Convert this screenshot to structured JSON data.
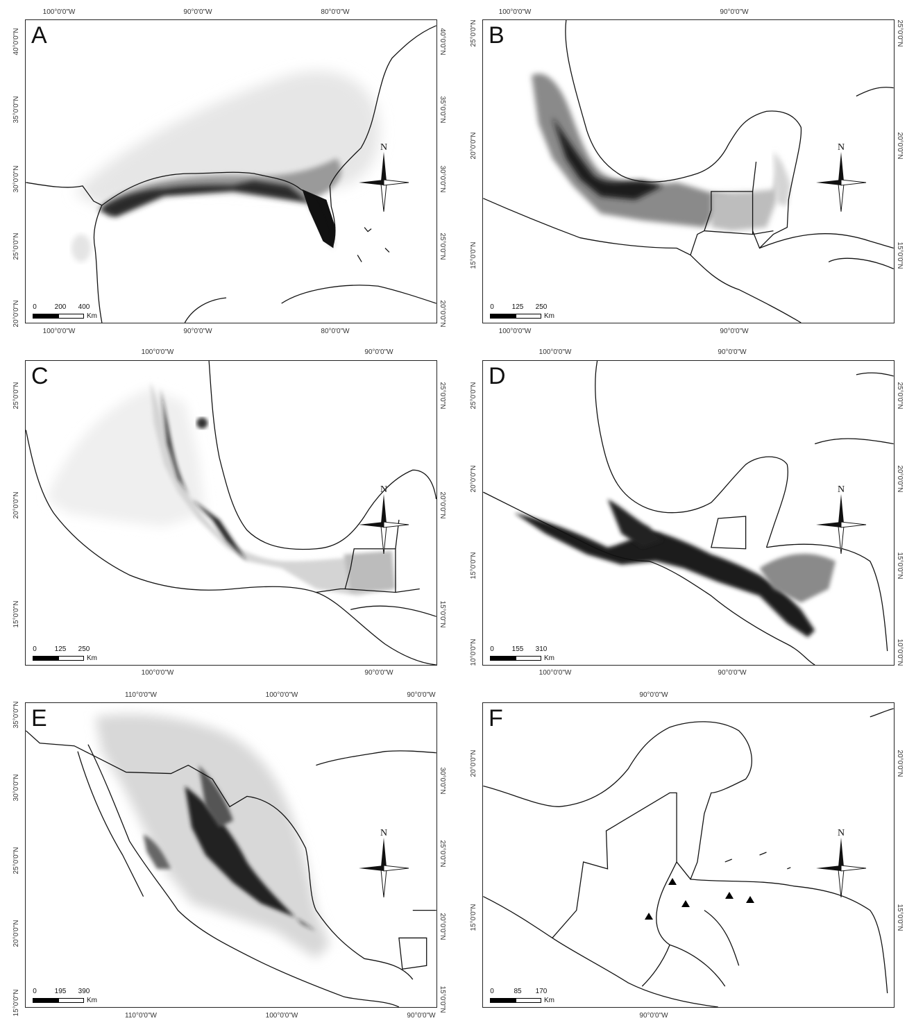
{
  "panels": [
    {
      "id": "A",
      "letter": "A",
      "top_ticks": [
        "100°0'0\"W",
        "90°0'0\"W",
        "80°0'0\"W"
      ],
      "bottom_ticks": [
        "100°0'0\"W",
        "90°0'0\"W",
        "80°0'0\"W"
      ],
      "left_ticks": [
        "40°0'0\"N",
        "35°0'0\"N",
        "30°0'0\"N",
        "25°0'0\"N",
        "20°0'0\"N"
      ],
      "right_ticks": [
        "40°0'0\"N",
        "35°0'0\"N",
        "30°0'0\"N",
        "25°0'0\"N",
        "20°0'0\"N"
      ],
      "scale": {
        "zero": "0",
        "mid": "200",
        "end": "400",
        "unit": "Km"
      },
      "north_label": "N"
    },
    {
      "id": "B",
      "letter": "B",
      "top_ticks": [
        "100°0'0\"W",
        "90°0'0\"W"
      ],
      "bottom_ticks": [
        "100°0'0\"W",
        "90°0'0\"W"
      ],
      "left_ticks": [
        "25°0'0\"N",
        "20°0'0\"N",
        "15°0'0\"N"
      ],
      "right_ticks": [
        "25°0'0\"N",
        "20°0'0\"N",
        "15°0'0\"N"
      ],
      "scale": {
        "zero": "0",
        "mid": "125",
        "end": "250",
        "unit": "Km"
      },
      "north_label": "N"
    },
    {
      "id": "C",
      "letter": "C",
      "top_ticks": [
        "100°0'0\"W",
        "90°0'0\"W"
      ],
      "bottom_ticks": [
        "100°0'0\"W",
        "90°0'0\"W"
      ],
      "left_ticks": [
        "25°0'0\"N",
        "20°0'0\"N",
        "15°0'0\"N"
      ],
      "right_ticks": [
        "25°0'0\"N",
        "20°0'0\"N",
        "15°0'0\"N"
      ],
      "scale": {
        "zero": "0",
        "mid": "125",
        "end": "250",
        "unit": "Km"
      },
      "north_label": "N"
    },
    {
      "id": "D",
      "letter": "D",
      "top_ticks": [
        "100°0'0\"W",
        "90°0'0\"W"
      ],
      "bottom_ticks": [
        "100°0'0\"W",
        "90°0'0\"W"
      ],
      "left_ticks": [
        "25°0'0\"N",
        "20°0'0\"N",
        "15°0'0\"N",
        "10°0'0\"N"
      ],
      "right_ticks": [
        "25°0'0\"N",
        "20°0'0\"N",
        "15°0'0\"N",
        "10°0'0\"N"
      ],
      "scale": {
        "zero": "0",
        "mid": "155",
        "end": "310",
        "unit": "Km"
      },
      "north_label": "N"
    },
    {
      "id": "E",
      "letter": "E",
      "top_ticks": [
        "110°0'0\"W",
        "100°0'0\"W",
        "90°0'0\"W"
      ],
      "bottom_ticks": [
        "110°0'0\"W",
        "100°0'0\"W",
        "90°0'0\"W"
      ],
      "left_ticks": [
        "35°0'0\"N",
        "30°0'0\"N",
        "25°0'0\"N",
        "20°0'0\"N",
        "15°0'0\"N"
      ],
      "right_ticks": [
        "30°0'0\"N",
        "25°0'0\"N",
        "20°0'0\"N",
        "15°0'0\"N"
      ],
      "scale": {
        "zero": "0",
        "mid": "195",
        "end": "390",
        "unit": "Km"
      },
      "north_label": "N"
    },
    {
      "id": "F",
      "letter": "F",
      "top_ticks": [
        "90°0'0\"W"
      ],
      "bottom_ticks": [
        "90°0'0\"W"
      ],
      "left_ticks": [
        "20°0'0\"N",
        "15°0'0\"N"
      ],
      "right_ticks": [
        "20°0'0\"N",
        "15°0'0\"N"
      ],
      "scale": {
        "zero": "0",
        "mid": "85",
        "end": "170",
        "unit": "Km"
      },
      "north_label": "N",
      "occurrence_count": 5
    }
  ],
  "colors": {
    "land_outline": "#111111",
    "suitability_high": "#111111",
    "suitability_low": "#eeeeee",
    "occurrence_marker": "#000000"
  }
}
